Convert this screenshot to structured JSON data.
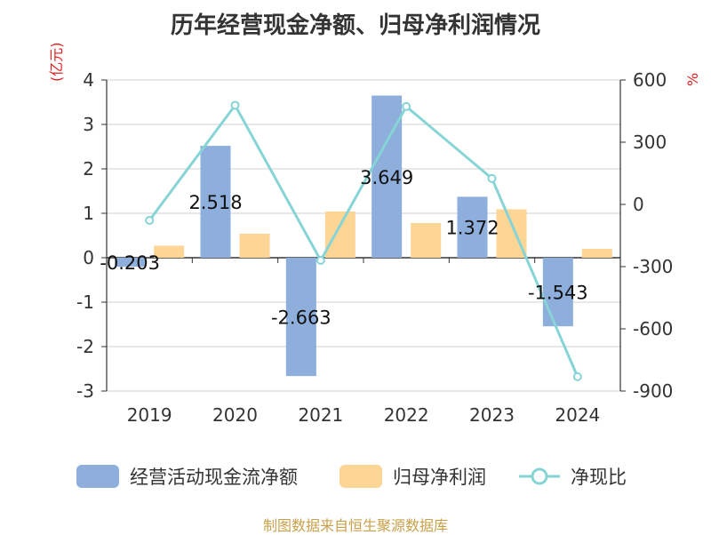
{
  "title": "历年经营现金净额、归母净利润情况",
  "source": "制图数据来自恒生聚源数据库",
  "colors": {
    "cash_flow": "#8eaedc",
    "net_profit": "#fdd696",
    "ratio": "#87d4d6",
    "axis": "#333333",
    "grid": "#d0d0d0",
    "unit": "#e02020",
    "source": "#c8a04a"
  },
  "chart_data": {
    "type": "bar",
    "categories": [
      "2019",
      "2020",
      "2021",
      "2022",
      "2023",
      "2024"
    ],
    "left_unit": "(亿元)",
    "right_unit": "%",
    "left_ylim": [
      -3,
      4
    ],
    "left_ticks": [
      "4",
      "3",
      "2",
      "1",
      "0",
      "-1",
      "-2",
      "-3"
    ],
    "right_ylim": [
      -900,
      600
    ],
    "right_ticks": [
      "600",
      "300",
      "0",
      "-300",
      "-600",
      "-900"
    ],
    "grid": true,
    "legend_position": "bottom",
    "series": [
      {
        "name": "经营活动现金流净额",
        "type": "bar",
        "axis": "left",
        "values": [
          -0.203,
          2.518,
          -2.663,
          3.649,
          1.372,
          -1.543
        ],
        "labels": [
          "-0.203",
          "2.518",
          "-2.663",
          "3.649",
          "1.372",
          "-1.543"
        ]
      },
      {
        "name": "归母净利润",
        "type": "bar",
        "axis": "left",
        "values": [
          0.27,
          0.54,
          1.04,
          0.78,
          1.09,
          0.2
        ]
      },
      {
        "name": "净现比",
        "type": "line",
        "axis": "right",
        "values": [
          -77,
          478,
          -270,
          472,
          125,
          -831
        ]
      }
    ]
  }
}
